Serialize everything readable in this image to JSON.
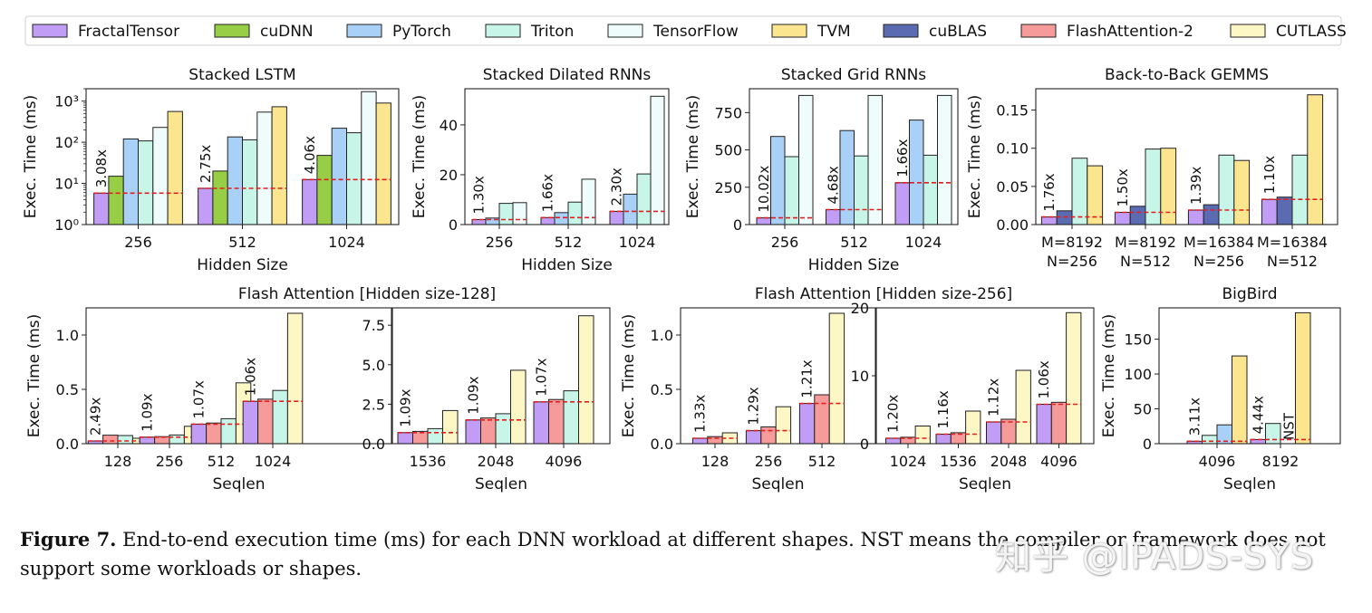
{
  "legend": [
    {
      "name": "FractalTensor",
      "color": "#c19df5"
    },
    {
      "name": "cuDNN",
      "color": "#98cd46"
    },
    {
      "name": "PyTorch",
      "color": "#a9d1f7"
    },
    {
      "name": "Triton",
      "color": "#c7f6e8"
    },
    {
      "name": "TensorFlow",
      "color": "#eefdfb"
    },
    {
      "name": "TVM",
      "color": "#fbe68f"
    },
    {
      "name": "cuBLAS",
      "color": "#5a6bb2"
    },
    {
      "name": "FlashAttention-2",
      "color": "#f79a9a"
    },
    {
      "name": "CUTLASS",
      "color": "#fdf6c5"
    }
  ],
  "chart_data": [
    {
      "type": "bar",
      "title": "Stacked LSTM",
      "xlabel": "Hidden Size",
      "ylabel": "Exec. Time (ms)",
      "scale": "log",
      "ylim": [
        1,
        2000
      ],
      "yticks": [
        {
          "value": 1,
          "label": "10⁰"
        },
        {
          "value": 10,
          "label": "10¹"
        },
        {
          "value": 100,
          "label": "10²"
        },
        {
          "value": 1000,
          "label": "10³"
        }
      ],
      "series": [
        "FractalTensor",
        "cuDNN",
        "PyTorch",
        "Triton",
        "TensorFlow",
        "TVM"
      ],
      "groups": [
        {
          "label": "256",
          "values": [
            5.8,
            15,
            120,
            108,
            230,
            560
          ],
          "speedup": "3.08x"
        },
        {
          "label": "512",
          "values": [
            7.6,
            20,
            135,
            115,
            540,
            730
          ],
          "speedup": "2.75x"
        },
        {
          "label": "1024",
          "values": [
            12.4,
            48,
            220,
            170,
            1700,
            900
          ],
          "speedup": "4.06x"
        }
      ]
    },
    {
      "type": "bar",
      "title": "Stacked Dilated RNNs",
      "xlabel": "Hidden Size",
      "ylabel": "Exec. Time (ms)",
      "ylim": [
        0,
        54.5
      ],
      "yticks": [
        {
          "value": 0,
          "label": "0"
        },
        {
          "value": 20,
          "label": "20"
        },
        {
          "value": 40,
          "label": "40"
        }
      ],
      "series": [
        "FractalTensor",
        "PyTorch",
        "Triton",
        "TensorFlow"
      ],
      "groups": [
        {
          "label": "256",
          "values": [
            2.0,
            2.6,
            8.5,
            8.8
          ],
          "speedup": "1.30x"
        },
        {
          "label": "512",
          "values": [
            2.8,
            4.8,
            9.0,
            18.2
          ],
          "speedup": "1.66x"
        },
        {
          "label": "1024",
          "values": [
            5.3,
            12.2,
            20.3,
            51.5
          ],
          "speedup": "2.30x"
        }
      ]
    },
    {
      "type": "bar",
      "title": "Stacked Grid RNNs",
      "xlabel": "Hidden Size",
      "ylabel": "Exec. Time (ms)",
      "ylim": [
        0,
        910
      ],
      "yticks": [
        {
          "value": 0,
          "label": "0"
        },
        {
          "value": 250,
          "label": "250"
        },
        {
          "value": 500,
          "label": "500"
        },
        {
          "value": 750,
          "label": "750"
        }
      ],
      "series": [
        "FractalTensor",
        "PyTorch",
        "Triton",
        "TensorFlow"
      ],
      "groups": [
        {
          "label": "256",
          "values": [
            45,
            590,
            455,
            865
          ],
          "speedup": "10.02x"
        },
        {
          "label": "512",
          "values": [
            100,
            630,
            460,
            865
          ],
          "speedup": "4.68x"
        },
        {
          "label": "1024",
          "values": [
            280,
            700,
            465,
            865
          ],
          "speedup": "1.66x"
        }
      ]
    },
    {
      "type": "bar",
      "title": "Back-to-Back GEMMS",
      "xlabel": "",
      "ylabel": "Exec. Time (ms)",
      "ylim": [
        0,
        0.178
      ],
      "yticks": [
        {
          "value": 0,
          "label": "0.00"
        },
        {
          "value": 0.05,
          "label": "0.05"
        },
        {
          "value": 0.1,
          "label": "0.10"
        },
        {
          "value": 0.15,
          "label": "0.15"
        }
      ],
      "series": [
        "FractalTensor",
        "cuBLAS",
        "Triton",
        "TVM"
      ],
      "groups": [
        {
          "label": "M=8192",
          "label2": "N=256",
          "values": [
            0.01,
            0.018,
            0.087,
            0.077
          ],
          "speedup": "1.76x"
        },
        {
          "label": "M=8192",
          "label2": "N=512",
          "values": [
            0.016,
            0.024,
            0.099,
            0.1
          ],
          "speedup": "1.50x"
        },
        {
          "label": "M=16384",
          "label2": "N=256",
          "values": [
            0.019,
            0.026,
            0.091,
            0.084
          ],
          "speedup": "1.39x"
        },
        {
          "label": "M=16384",
          "label2": "N=512",
          "values": [
            0.033,
            0.036,
            0.091,
            0.17
          ],
          "speedup": "1.10x"
        }
      ]
    },
    {
      "type": "bar",
      "title": "Flash Attention  [Hidden size-128]",
      "xlabel": "Seqlen",
      "ylabel": "Exec. Time (ms)",
      "ylim": [
        0,
        1.25
      ],
      "yticks": [
        {
          "value": 0,
          "label": "0.0"
        },
        {
          "value": 0.5,
          "label": "0.5"
        },
        {
          "value": 1.0,
          "label": "1.0"
        }
      ],
      "series": [
        "FractalTensor",
        "FlashAttention-2",
        "Triton",
        "CUTLASS"
      ],
      "groups": [
        {
          "label": "128",
          "values": [
            0.025,
            0.078,
            0.075,
            0.05
          ],
          "speedup": "2.49x"
        },
        {
          "label": "256",
          "values": [
            0.06,
            0.065,
            0.08,
            0.16
          ],
          "speedup": "1.09x"
        },
        {
          "label": "512",
          "values": [
            0.18,
            0.19,
            0.23,
            0.56
          ],
          "speedup": "1.07x"
        },
        {
          "label": "1024",
          "values": [
            0.39,
            0.41,
            0.49,
            1.2
          ],
          "speedup": "1.06x"
        }
      ]
    },
    {
      "type": "bar",
      "title": "",
      "xlabel": "Seqlen",
      "ylabel": "",
      "ylim": [
        0,
        8.6
      ],
      "yticks": [
        {
          "value": 0,
          "label": "0.0"
        },
        {
          "value": 2.5,
          "label": "2.5"
        },
        {
          "value": 5.0,
          "label": "5.0"
        },
        {
          "value": 7.5,
          "label": "7.5"
        }
      ],
      "series": [
        "FractalTensor",
        "FlashAttention-2",
        "Triton",
        "CUTLASS"
      ],
      "groups": [
        {
          "label": "1536",
          "values": [
            0.7,
            0.78,
            0.95,
            2.1
          ],
          "speedup": "1.09x"
        },
        {
          "label": "2048",
          "values": [
            1.5,
            1.63,
            1.9,
            4.65
          ],
          "speedup": "1.09x"
        },
        {
          "label": "4096",
          "values": [
            2.65,
            2.8,
            3.35,
            8.1
          ],
          "speedup": "1.07x"
        }
      ]
    },
    {
      "type": "bar",
      "title": "Flash Attention  [Hidden size-256]",
      "xlabel": "Seqlen",
      "ylabel": "Exec. Time (ms)",
      "ylim": [
        0,
        1.25
      ],
      "yticks": [
        {
          "value": 0,
          "label": "0.0"
        },
        {
          "value": 0.5,
          "label": "0.5"
        },
        {
          "value": 1.0,
          "label": "1.0"
        }
      ],
      "series": [
        "FractalTensor",
        "FlashAttention-2",
        "CUTLASS"
      ],
      "groups": [
        {
          "label": "128",
          "values": [
            0.05,
            0.065,
            0.1
          ],
          "speedup": "1.33x"
        },
        {
          "label": "256",
          "values": [
            0.12,
            0.155,
            0.34
          ],
          "speedup": "1.29x"
        },
        {
          "label": "512",
          "values": [
            0.37,
            0.45,
            1.2
          ],
          "speedup": "1.21x"
        }
      ]
    },
    {
      "type": "bar",
      "title": "",
      "xlabel": "Seqlen",
      "ylabel": "",
      "ylim": [
        0,
        20
      ],
      "yticks": [
        {
          "value": 0,
          "label": "0"
        },
        {
          "value": 10,
          "label": "10"
        },
        {
          "value": 20,
          "label": "20"
        }
      ],
      "series": [
        "FractalTensor",
        "FlashAttention-2",
        "CUTLASS"
      ],
      "groups": [
        {
          "label": "1024",
          "values": [
            0.8,
            0.95,
            2.6
          ],
          "speedup": "1.20x"
        },
        {
          "label": "1536",
          "values": [
            1.4,
            1.62,
            4.8
          ],
          "speedup": "1.16x"
        },
        {
          "label": "2048",
          "values": [
            3.2,
            3.6,
            10.8
          ],
          "speedup": "1.12x"
        },
        {
          "label": "4096",
          "values": [
            5.8,
            6.1,
            19.3
          ],
          "speedup": "1.06x"
        }
      ]
    },
    {
      "type": "bar",
      "title": "BigBird",
      "xlabel": "Seqlen",
      "ylabel": "Exec. Time (ms)",
      "ylim": [
        0,
        195
      ],
      "yticks": [
        {
          "value": 0,
          "label": "0"
        },
        {
          "value": 50,
          "label": "50"
        },
        {
          "value": 100,
          "label": "100"
        },
        {
          "value": 150,
          "label": "150"
        }
      ],
      "series": [
        "FractalTensor",
        "Triton",
        "PyTorch",
        "TVM"
      ],
      "groups": [
        {
          "label": "4096",
          "values": [
            3.5,
            12,
            27,
            126
          ],
          "speedup": "3.11x"
        },
        {
          "label": "8192",
          "values": [
            6.0,
            29,
            null,
            188
          ],
          "speedup": "4.44x",
          "nst_series": "PyTorch"
        }
      ],
      "nst_label": "NST"
    }
  ],
  "caption": {
    "label": "Figure 7.",
    "text": " End-to-end execution time (ms) for each DNN workload at different shapes. NST means the compiler or framework does not support some workloads or shapes."
  },
  "watermark": "知乎 @IPADS-SYS"
}
